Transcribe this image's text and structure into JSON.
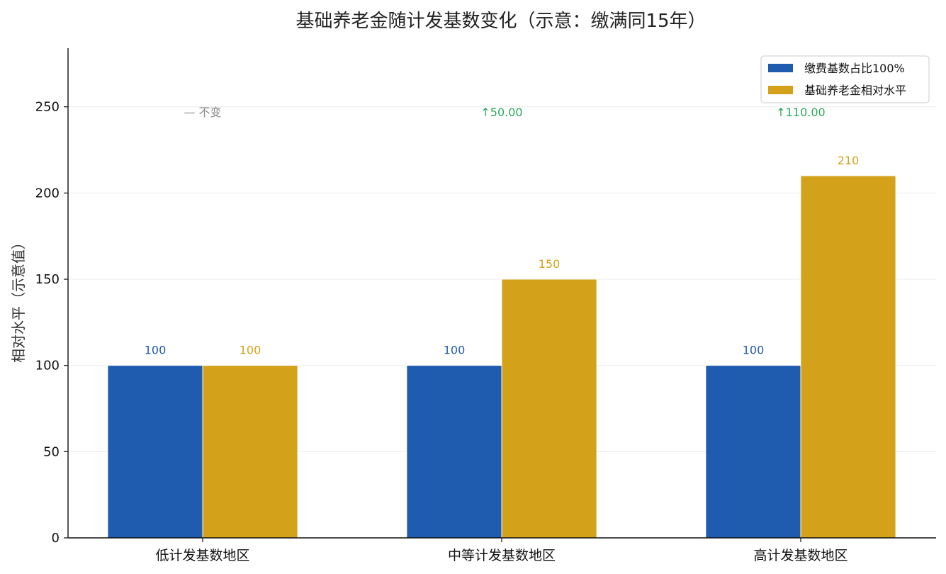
{
  "chart_data": {
    "type": "bar",
    "title": "基础养老金随计发基数变化（示意：缴满同15年）",
    "xlabel": "",
    "ylabel": "相对水平（示意值）",
    "ylim": [
      0,
      284
    ],
    "yticks": [
      0,
      50,
      100,
      150,
      200,
      250
    ],
    "grid": "y",
    "legend_position": "top-right",
    "categories": [
      "低计发基数地区",
      "中等计发基数地区",
      "高计发基数地区"
    ],
    "series": [
      {
        "name": "缴费基数占比100%",
        "values": [
          100,
          100,
          100
        ],
        "color": "#1f5baf",
        "labels": [
          "100",
          "100",
          "100"
        ]
      },
      {
        "name": "基础养老金相对水平",
        "values": [
          100,
          150,
          210
        ],
        "color": "#d4a21a",
        "labels": [
          "100",
          "150",
          "210"
        ]
      }
    ],
    "annotations": [
      {
        "category": "低计发基数地区",
        "text": "— 不变",
        "color": "#888888",
        "y": 247
      },
      {
        "category": "中等计发基数地区",
        "text": "↑50.00",
        "color": "#2ca85a",
        "y": 247
      },
      {
        "category": "高计发基数地区",
        "text": "↑110.00",
        "color": "#2ca85a",
        "y": 247
      }
    ]
  }
}
